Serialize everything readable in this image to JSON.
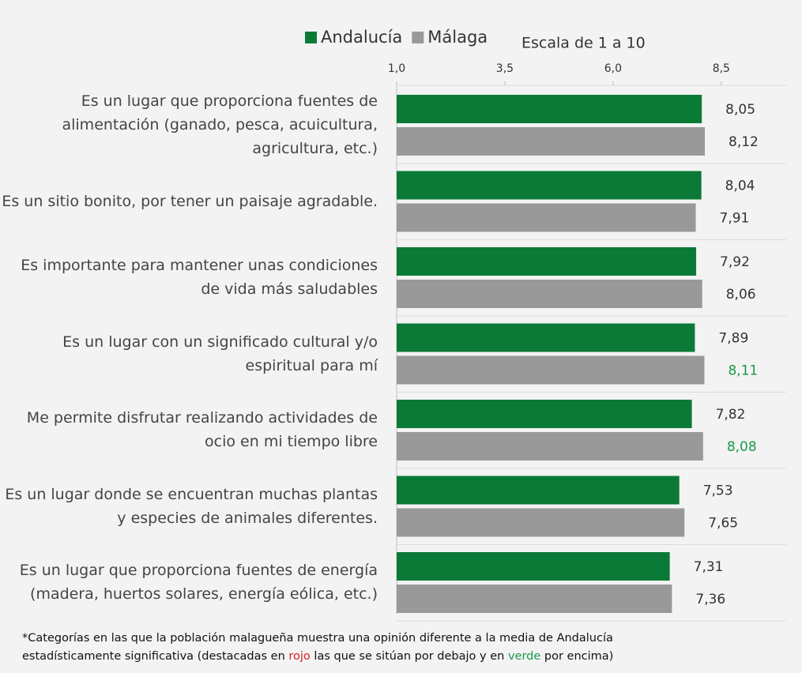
{
  "chart_data": {
    "type": "barh",
    "subtitle": "Escala de 1 a 10",
    "categories": [
      "Es un lugar que proporciona fuentes de alimentación (ganado, pesca, acuicultura, agricultura, etc.)",
      "Es un sitio bonito, por tener un paisaje agradable.",
      "Es importante para mantener unas condiciones de vida más saludables",
      "Es un lugar con un significado cultural y/o espiritual para mí",
      "Me permite disfrutar realizando actividades de ocio en mi tiempo libre",
      "Es un lugar donde se encuentran muchas plantas y especies de animales diferentes.",
      "Es un lugar que proporciona fuentes de energía (madera, huertos solares, energía eólica, etc.)"
    ],
    "series": [
      {
        "name": "Andalucía",
        "color": "#0b7a36",
        "values": [
          8.05,
          8.04,
          7.92,
          7.89,
          7.82,
          7.53,
          7.31
        ],
        "value_labels": [
          "8,05",
          "8,04",
          "7,92",
          "7,89",
          "7,82",
          "7,53",
          "7,31"
        ],
        "value_label_colors": [
          "#333333",
          "#333333",
          "#333333",
          "#333333",
          "#333333",
          "#333333",
          "#333333"
        ]
      },
      {
        "name": "Málaga",
        "color": "#999999",
        "values": [
          8.12,
          7.91,
          8.06,
          8.11,
          8.08,
          7.65,
          7.36
        ],
        "value_labels": [
          "8,12",
          "7,91",
          "8,06",
          "8,11",
          "8,08",
          "7,65",
          "7,36"
        ],
        "value_label_colors": [
          "#333333",
          "#333333",
          "#333333",
          "#1a9a48",
          "#1a9a48",
          "#333333",
          "#333333"
        ]
      }
    ],
    "xlim": [
      1,
      10
    ],
    "xticks": [
      {
        "value": 1,
        "label": "1,0"
      },
      {
        "value": 3.5,
        "label": "3,5"
      },
      {
        "value": 6,
        "label": "6,0"
      },
      {
        "value": 8.5,
        "label": "8,5"
      }
    ],
    "note": [
      "*Categorías en las que la población malagueña muestra una opinión diferente a la media de Andalucía",
      "estadísticamente significativa (destacadas en ",
      "rojo",
      " las que se sitúan por debajo y en ",
      "verde",
      " por encima)"
    ],
    "note_colors": {
      "rojo": "#e02020",
      "verde": "#1a9a48"
    }
  }
}
